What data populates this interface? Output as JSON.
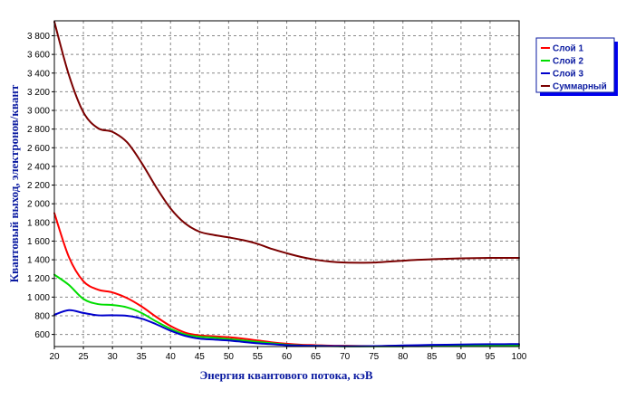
{
  "chart_data": {
    "type": "line",
    "xlabel": "Энергия квантового потока, кэВ",
    "ylabel": "Квантовый выход, электронов/квант",
    "xlim": [
      20,
      100
    ],
    "ylim": [
      470,
      3960
    ],
    "xticks": [
      20,
      25,
      30,
      35,
      40,
      45,
      50,
      55,
      60,
      65,
      70,
      75,
      80,
      85,
      90,
      95,
      100
    ],
    "xtick_labels": [
      "20",
      "25",
      "30",
      "35",
      "40",
      "45",
      "50",
      "55",
      "60",
      "65",
      "70",
      "75",
      "80",
      "85",
      "90",
      "95",
      "100"
    ],
    "yticks": [
      600,
      800,
      1000,
      1200,
      1400,
      1600,
      1800,
      2000,
      2200,
      2400,
      2600,
      2800,
      3000,
      3200,
      3400,
      3600,
      3800
    ],
    "ytick_labels": [
      "600",
      "800",
      "1 000",
      "1 200",
      "1 400",
      "1 600",
      "1 800",
      "2 000",
      "2 200",
      "2 400",
      "2 600",
      "2 800",
      "3 000",
      "3 200",
      "3 400",
      "3 600",
      "3 800"
    ],
    "grid": true,
    "legend_position": "right",
    "x": [
      20,
      22.5,
      25,
      27.5,
      30,
      32.5,
      35,
      37.5,
      40,
      42.5,
      45,
      47.5,
      50,
      52.5,
      55,
      57.5,
      60,
      62.5,
      65,
      67.5,
      70,
      72.5,
      75,
      77.5,
      80,
      82.5,
      85,
      87.5,
      90,
      92.5,
      95,
      97.5,
      100
    ],
    "series": [
      {
        "name": "Слой 1",
        "color": "#ff0000",
        "values": [
          1900,
          1430,
          1170,
          1080,
          1050,
          990,
          900,
          790,
          690,
          620,
          590,
          580,
          570,
          555,
          535,
          515,
          500,
          490,
          485,
          480,
          478,
          476,
          475,
          476,
          477,
          478,
          478,
          479,
          480,
          481,
          482,
          482,
          482
        ]
      },
      {
        "name": "Слой 2",
        "color": "#00dd00",
        "values": [
          1240,
          1130,
          980,
          925,
          915,
          890,
          830,
          740,
          660,
          600,
          575,
          565,
          550,
          535,
          520,
          505,
          490,
          482,
          478,
          475,
          473,
          472,
          472,
          472,
          473,
          474,
          475,
          476,
          477,
          478,
          479,
          480,
          480
        ]
      },
      {
        "name": "Слой 3",
        "color": "#0000cc",
        "values": [
          810,
          860,
          830,
          805,
          805,
          800,
          770,
          710,
          640,
          585,
          555,
          545,
          535,
          520,
          505,
          495,
          485,
          480,
          477,
          475,
          474,
          474,
          475,
          478,
          482,
          485,
          488,
          490,
          492,
          494,
          495,
          496,
          497
        ]
      },
      {
        "name": "Суммарный",
        "color": "#7a0000",
        "values": [
          3950,
          3380,
          2980,
          2810,
          2770,
          2660,
          2440,
          2180,
          1950,
          1790,
          1700,
          1665,
          1640,
          1610,
          1570,
          1515,
          1470,
          1430,
          1400,
          1380,
          1370,
          1368,
          1370,
          1380,
          1390,
          1400,
          1405,
          1410,
          1415,
          1418,
          1420,
          1420,
          1420
        ]
      }
    ]
  },
  "colors": {
    "axis_title": "#0a1aa0",
    "legend_text": "#0a1aa0",
    "legend_border": "#0a1aa0",
    "legend_shadow": "#0000ee",
    "grid": "#888888",
    "frame": "#000000"
  }
}
